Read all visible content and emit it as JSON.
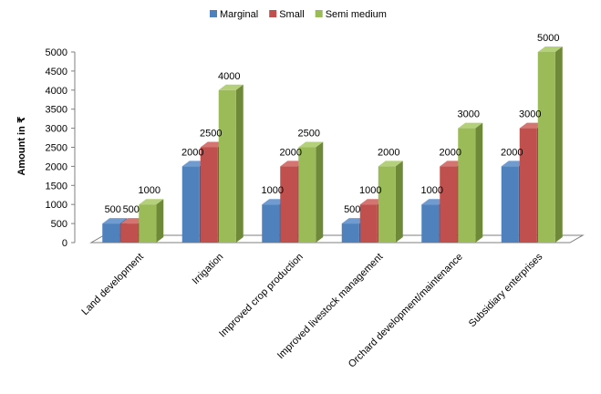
{
  "chart_data": {
    "type": "bar",
    "title": "",
    "xlabel": "",
    "ylabel": "Amount in ₹",
    "ylim": [
      0,
      5000
    ],
    "yticks": [
      0,
      500,
      1000,
      1500,
      2000,
      2500,
      3000,
      3500,
      4000,
      4500,
      5000
    ],
    "grid": false,
    "legend_position": "top-center",
    "style": "3d-clustered-column",
    "categories": [
      "Land development",
      "Irrigation",
      "Improved crop production",
      "Improved livestock management",
      "Orchard development/maintenance",
      "Subsidiary enterprises"
    ],
    "series": [
      {
        "name": "Marginal",
        "color": "#4F81BD",
        "side_color": "#2E5A93",
        "top_color": "#6F9BD1",
        "values": [
          500,
          2000,
          1000,
          500,
          1000,
          2000
        ]
      },
      {
        "name": "Small",
        "color": "#C0504D",
        "side_color": "#8F3330",
        "top_color": "#D47572",
        "values": [
          500,
          2500,
          2000,
          1000,
          2000,
          3000
        ]
      },
      {
        "name": "Semi medium",
        "color": "#9BBB59",
        "side_color": "#6E8A38",
        "top_color": "#B5D07A",
        "values": [
          1000,
          4000,
          2500,
          2000,
          3000,
          5000
        ]
      }
    ]
  }
}
